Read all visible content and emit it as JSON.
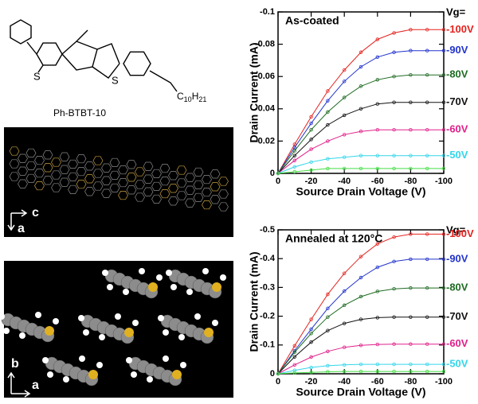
{
  "structure": {
    "label": "Ph-BTBT-10",
    "substituent": [
      "C",
      "10",
      "H",
      "21"
    ],
    "sulfur": [
      "S",
      "S"
    ]
  },
  "packing_view_1": {
    "axes": [
      "c",
      "a"
    ]
  },
  "packing_view_2": {
    "axes": [
      "b",
      "a"
    ]
  },
  "chart_data": [
    {
      "type": "line",
      "title": "As-coated",
      "x_label": "Source Drain Voltage (V)",
      "y_label": "Drain Current (mA)",
      "legend_title": "Vg=",
      "x": [
        0,
        -10,
        -20,
        -30,
        -40,
        -50,
        -60,
        -70,
        -80,
        -90,
        -100
      ],
      "xlim": [
        0,
        -100
      ],
      "xticks": [
        0,
        -20,
        -40,
        -60,
        -80,
        -100
      ],
      "ylim": [
        0,
        -0.1
      ],
      "yticks": [
        0,
        -0.02,
        -0.04,
        -0.06,
        -0.08,
        -0.1
      ],
      "series": [
        {
          "name": "-100V",
          "color": "#e3231f",
          "values": [
            0,
            -0.018,
            -0.035,
            -0.051,
            -0.064,
            -0.075,
            -0.083,
            -0.087,
            -0.089,
            -0.089,
            -0.089
          ]
        },
        {
          "name": "-90V",
          "color": "#2233cc",
          "values": [
            0,
            -0.016,
            -0.031,
            -0.045,
            -0.057,
            -0.066,
            -0.072,
            -0.075,
            -0.076,
            -0.076,
            -0.076
          ]
        },
        {
          "name": "-80V",
          "color": "#1e6b22",
          "values": [
            0,
            -0.014,
            -0.027,
            -0.038,
            -0.047,
            -0.054,
            -0.058,
            -0.06,
            -0.061,
            -0.061,
            -0.061
          ]
        },
        {
          "name": "-70V",
          "color": "#111111",
          "values": [
            0,
            -0.011,
            -0.021,
            -0.03,
            -0.036,
            -0.04,
            -0.043,
            -0.044,
            -0.044,
            -0.044,
            -0.044
          ]
        },
        {
          "name": "-60V",
          "color": "#e0208a",
          "values": [
            0,
            -0.008,
            -0.015,
            -0.02,
            -0.024,
            -0.026,
            -0.027,
            -0.027,
            -0.027,
            -0.027,
            -0.027
          ]
        },
        {
          "name": "-50V",
          "color": "#33d6ea",
          "values": [
            0,
            -0.004,
            -0.007,
            -0.009,
            -0.01,
            -0.011,
            -0.011,
            -0.011,
            -0.011,
            -0.011,
            -0.011
          ]
        },
        {
          "color": "#44dd44",
          "values": [
            0,
            -0.001,
            -0.002,
            -0.003,
            -0.003,
            -0.003,
            -0.003,
            -0.003,
            -0.003,
            -0.003,
            -0.003
          ]
        }
      ]
    },
    {
      "type": "line",
      "title": "Annealed at 120°C",
      "x_label": "Source Drain Voltage (V)",
      "y_label": "Drain Current (mA)",
      "legend_title": "Vg=",
      "x": [
        0,
        -10,
        -20,
        -30,
        -40,
        -50,
        -60,
        -70,
        -80,
        -90,
        -100
      ],
      "xlim": [
        0,
        -100
      ],
      "xticks": [
        0,
        -20,
        -40,
        -60,
        -80,
        -100
      ],
      "ylim": [
        0,
        -0.5
      ],
      "yticks": [
        0,
        -0.1,
        -0.2,
        -0.3,
        -0.4,
        -0.5
      ],
      "series": [
        {
          "name": "-100V",
          "color": "#e3231f",
          "values": [
            0,
            -0.097,
            -0.189,
            -0.276,
            -0.349,
            -0.407,
            -0.451,
            -0.475,
            -0.485,
            -0.485,
            -0.485
          ]
        },
        {
          "name": "-90V",
          "color": "#2233cc",
          "values": [
            0,
            -0.08,
            -0.155,
            -0.227,
            -0.287,
            -0.334,
            -0.37,
            -0.39,
            -0.398,
            -0.398,
            -0.398
          ]
        },
        {
          "name": "-80V",
          "color": "#1e6b22",
          "values": [
            0,
            -0.075,
            -0.14,
            -0.197,
            -0.238,
            -0.268,
            -0.286,
            -0.295,
            -0.298,
            -0.298,
            -0.298
          ]
        },
        {
          "name": "-70V",
          "color": "#111111",
          "values": [
            0,
            -0.059,
            -0.11,
            -0.15,
            -0.175,
            -0.189,
            -0.195,
            -0.197,
            -0.197,
            -0.197,
            -0.197
          ]
        },
        {
          "name": "-60V",
          "color": "#e0208a",
          "values": [
            0,
            -0.031,
            -0.058,
            -0.078,
            -0.092,
            -0.099,
            -0.102,
            -0.103,
            -0.103,
            -0.103,
            -0.103
          ]
        },
        {
          "name": "-50V",
          "color": "#33d6ea",
          "values": [
            0,
            -0.012,
            -0.022,
            -0.028,
            -0.031,
            -0.033,
            -0.033,
            -0.033,
            -0.033,
            -0.033,
            -0.033
          ]
        },
        {
          "color": "#44dd44",
          "values": [
            0,
            -0.003,
            -0.005,
            -0.007,
            -0.008,
            -0.008,
            -0.008,
            -0.008,
            -0.008,
            -0.008,
            -0.008
          ]
        }
      ]
    }
  ]
}
